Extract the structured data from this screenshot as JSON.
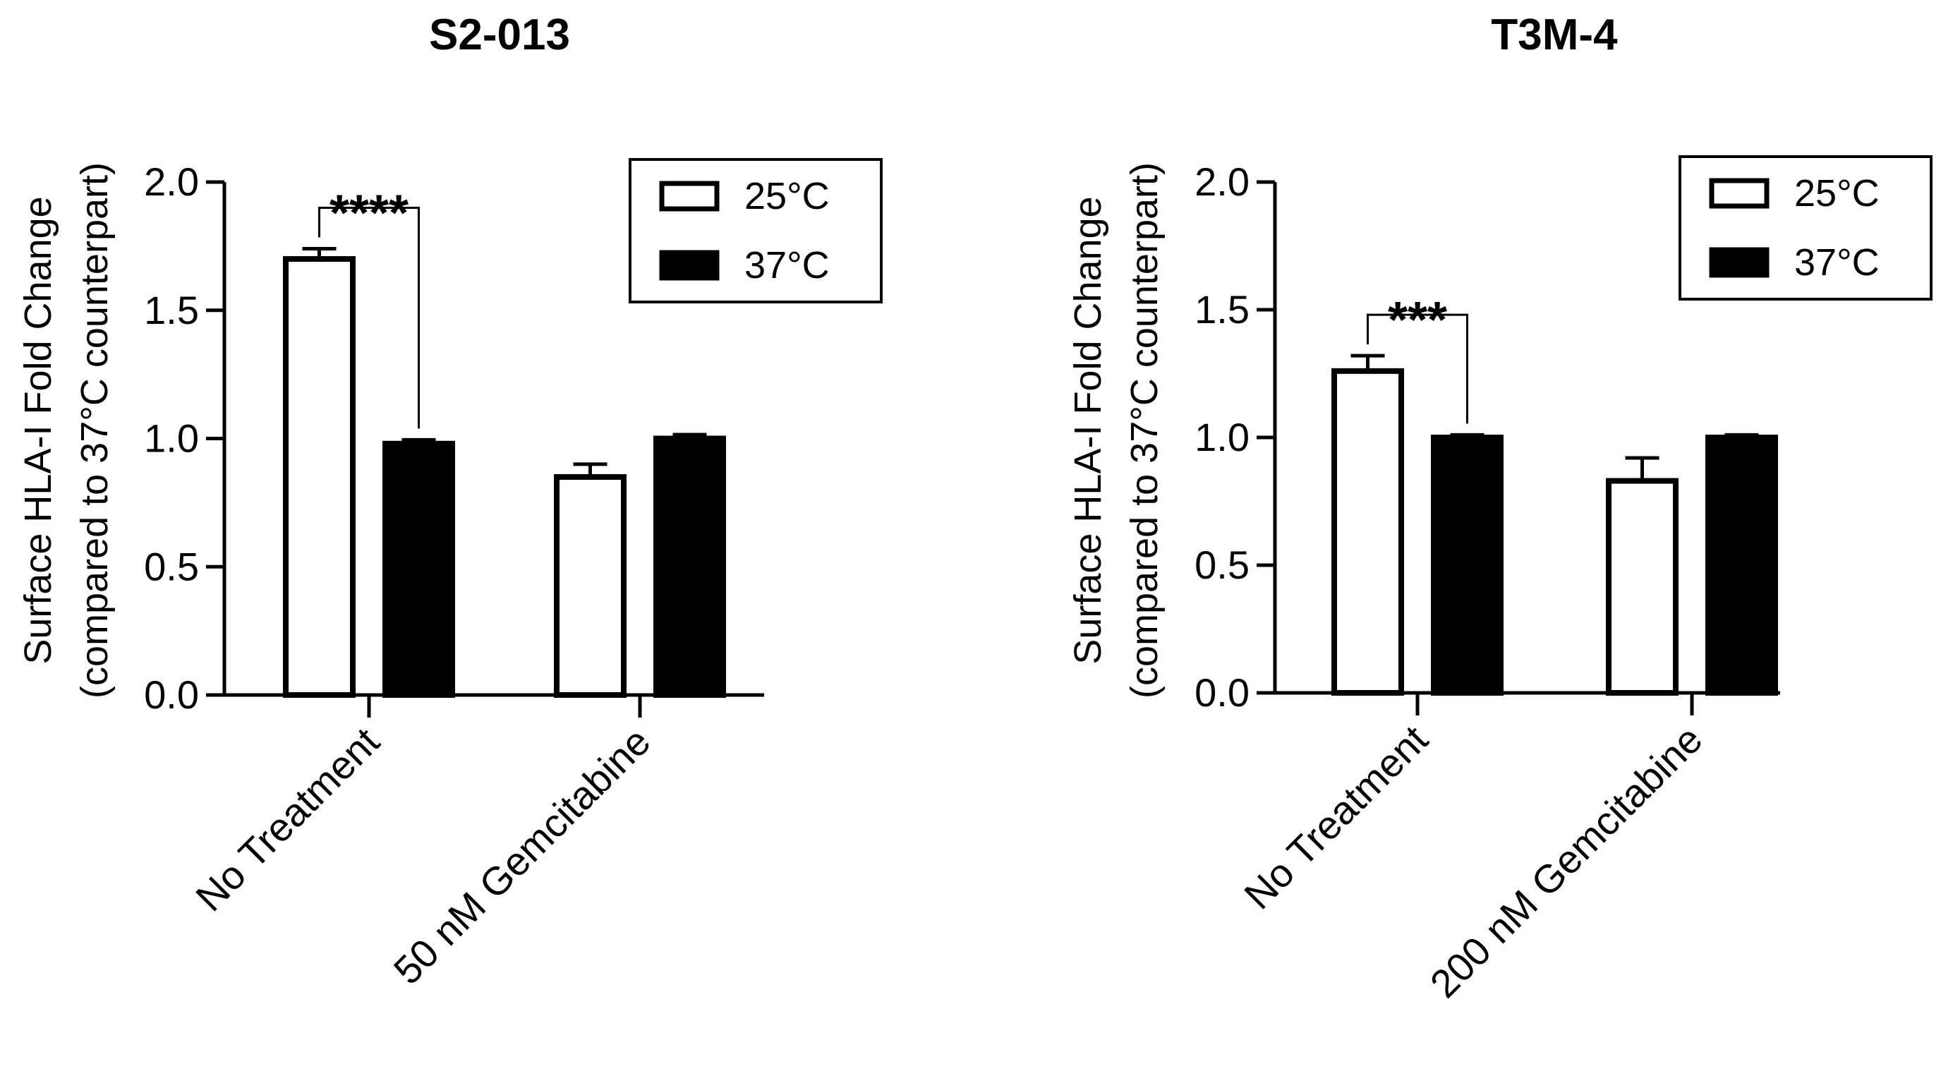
{
  "chart_data": [
    {
      "type": "bar",
      "title": "S2-013",
      "ylabel_lines": [
        "Surface HLA-I Fold Change",
        "(compared to 37°C counterpart)"
      ],
      "xlabel": "",
      "ylim": [
        0,
        2.0
      ],
      "yticks": [
        0.0,
        0.5,
        1.0,
        1.5,
        2.0
      ],
      "ytick_labels": [
        "0.0",
        "0.5",
        "1.0",
        "1.5",
        "2.0"
      ],
      "categories": [
        "No Treatment",
        "50 nM Gemcitabine"
      ],
      "series": [
        {
          "name": "25°C",
          "fill": "#ffffff",
          "values": [
            1.7,
            0.85
          ],
          "errors": [
            0.04,
            0.05
          ]
        },
        {
          "name": "37°C",
          "fill": "#000000",
          "values": [
            0.98,
            1.0
          ],
          "errors": [
            0.015,
            0.015
          ]
        }
      ],
      "significance": [
        {
          "category": "No Treatment",
          "label": "****"
        }
      ]
    },
    {
      "type": "bar",
      "title": "T3M-4",
      "ylabel_lines": [
        "Surface HLA-I Fold Change",
        "(compared to 37°C counterpart)"
      ],
      "xlabel": "",
      "ylim": [
        0,
        2.0
      ],
      "yticks": [
        0.0,
        0.5,
        1.0,
        1.5,
        2.0
      ],
      "ytick_labels": [
        "0.0",
        "0.5",
        "1.0",
        "1.5",
        "2.0"
      ],
      "categories": [
        "No Treatment",
        "200 nM Gemcitabine"
      ],
      "series": [
        {
          "name": "25°C",
          "fill": "#ffffff",
          "values": [
            1.26,
            0.83
          ],
          "errors": [
            0.06,
            0.09
          ]
        },
        {
          "name": "37°C",
          "fill": "#000000",
          "values": [
            1.0,
            1.0
          ],
          "errors": [
            0.01,
            0.01
          ]
        }
      ],
      "significance": [
        {
          "category": "No Treatment",
          "label": "***"
        }
      ]
    }
  ]
}
